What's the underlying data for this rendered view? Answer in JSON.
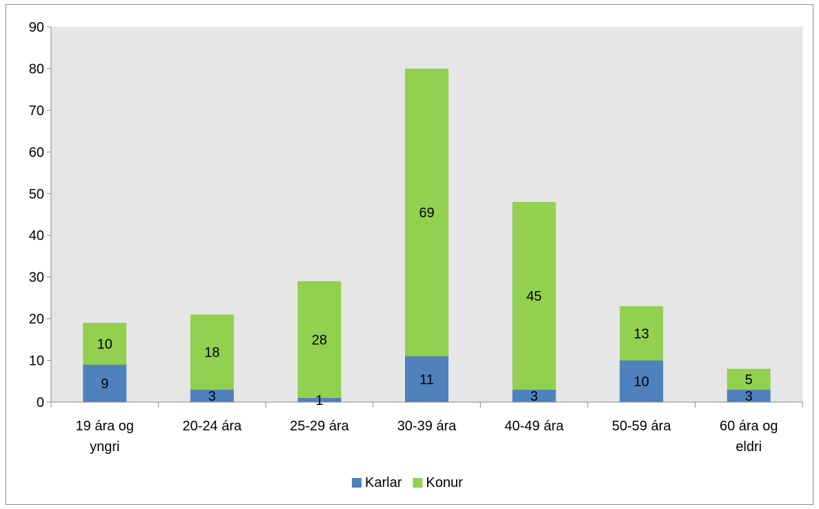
{
  "chart_data": {
    "type": "bar",
    "stacked": true,
    "title": "",
    "xlabel": "",
    "ylabel": "",
    "categories": [
      [
        "19 ára og",
        "yngri"
      ],
      [
        "20-24 ára"
      ],
      [
        "25-29 ára"
      ],
      [
        "30-39 ára"
      ],
      [
        "40-49 ára"
      ],
      [
        "50-59 ára"
      ],
      [
        "60 ára og",
        "eldri"
      ]
    ],
    "series": [
      {
        "name": "Karlar",
        "color": "#4f81bd",
        "values": [
          9,
          3,
          1,
          11,
          3,
          10,
          3
        ]
      },
      {
        "name": "Konur",
        "color": "#92d050",
        "values": [
          10,
          18,
          28,
          69,
          45,
          13,
          5
        ]
      }
    ],
    "ylim": [
      0,
      90
    ],
    "yticks": [
      0,
      10,
      20,
      30,
      40,
      50,
      60,
      70,
      80,
      90
    ],
    "grid": false,
    "plot_background": "#e6e6e6",
    "legend": {
      "position": "bottom"
    }
  }
}
